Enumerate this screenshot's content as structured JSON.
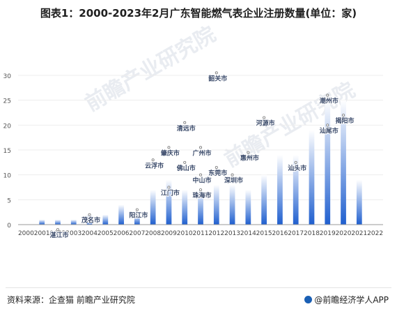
{
  "title": "图表1：2000-2023年2月广东智能燃气表企业注册数量(单位：家)",
  "footer": {
    "source": "资料来源：企查猫 前瞻产业研究院",
    "brand": "@前瞻经济学人APP"
  },
  "colors": {
    "bar_top": "#ffffff",
    "bar_bottom": "#1f5fcf",
    "axis": "#9a9a9a",
    "grid": "#ededed"
  },
  "chart_data": {
    "type": "bar",
    "title": "图表1：2000-2023年2月广东智能燃气表企业注册数量(单位：家)",
    "xlabel": "",
    "ylabel": "",
    "ylim": [
      0,
      30
    ],
    "yticks": [
      0,
      5,
      10,
      15,
      20,
      25,
      30
    ],
    "grid": true,
    "categories": [
      "2000",
      "2001",
      "2002",
      "2003",
      "2004",
      "2005",
      "2006",
      "2007",
      "2008",
      "2009",
      "2010",
      "2011",
      "2012",
      "2013",
      "2014",
      "2015",
      "2016",
      "2017",
      "2018",
      "2019",
      "2020",
      "2021",
      "2022"
    ],
    "values": [
      0,
      1,
      1,
      1,
      2,
      2,
      4,
      2,
      7,
      9,
      7,
      7,
      8,
      8,
      7,
      10,
      14,
      14,
      19,
      25,
      25,
      9,
      0
    ],
    "annotations": [
      {
        "label": "韶关市",
        "x": "2012",
        "y": 30.5
      },
      {
        "label": "潮州市",
        "x": "2019",
        "y": 26
      },
      {
        "label": "清远市",
        "x": "2010",
        "y": 20.5
      },
      {
        "label": "河源市",
        "x": "2015",
        "y": 21.5
      },
      {
        "label": "揭阳市",
        "x": "2020",
        "y": 22
      },
      {
        "label": "肇庆市",
        "x": "2009",
        "y": 15.5
      },
      {
        "label": "广州市",
        "x": "2011",
        "y": 15.5
      },
      {
        "label": "惠州市",
        "x": "2014",
        "y": 14.5
      },
      {
        "label": "汕头市",
        "x": "2017",
        "y": 12.5
      },
      {
        "label": "汕尾市",
        "x": "2019",
        "y": 20
      },
      {
        "label": "云浮市",
        "x": "2008",
        "y": 13
      },
      {
        "label": "佛山市",
        "x": "2010",
        "y": 12.5
      },
      {
        "label": "东莞市",
        "x": "2012",
        "y": 11.5
      },
      {
        "label": "中山市",
        "x": "2011",
        "y": 10
      },
      {
        "label": "深圳市",
        "x": "2013",
        "y": 10
      },
      {
        "label": "江门市",
        "x": "2009",
        "y": 7.5
      },
      {
        "label": "珠海市",
        "x": "2011",
        "y": 7
      },
      {
        "label": "阳江市",
        "x": "2007",
        "y": 3
      },
      {
        "label": "茂名市",
        "x": "2004",
        "y": 2
      },
      {
        "label": "湛江市",
        "x": "2002",
        "y": -1
      }
    ],
    "watermark": "前瞻产业研究院"
  }
}
